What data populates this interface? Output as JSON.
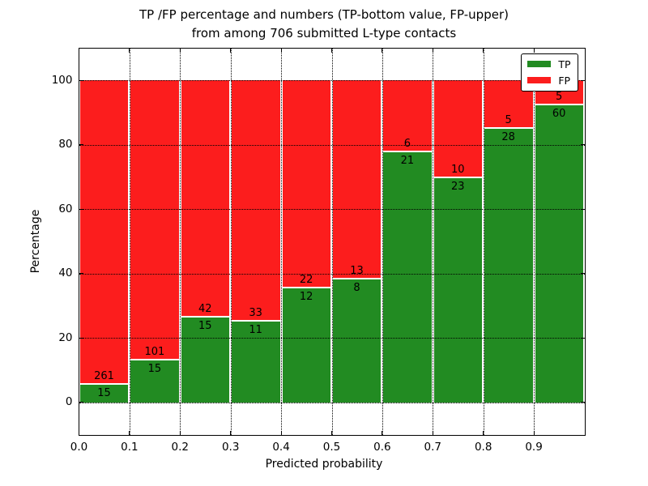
{
  "figure": {
    "title_line1": "TP /FP percentage and numbers (TP-bottom value, FP-upper)",
    "title_line2": "from among 706 submitted L-type contacts"
  },
  "chart_data": {
    "type": "bar",
    "stacked": true,
    "title": "TP /FP percentage and numbers (TP-bottom value, FP-upper)\nfrom among 706 submitted L-type contacts",
    "xlabel": "Predicted probability",
    "ylabel": "Percentage",
    "xlim": [
      0.0,
      1.0
    ],
    "ylim": [
      -10,
      110
    ],
    "grid": true,
    "normalized_to_percent": true,
    "total_contacts": 706,
    "bin_edges": [
      0.0,
      0.1,
      0.2,
      0.3,
      0.4,
      0.5,
      0.6,
      0.7,
      0.8,
      0.9,
      1.0
    ],
    "x_ticks": [
      "0.0",
      "0.1",
      "0.2",
      "0.3",
      "0.4",
      "0.5",
      "0.6",
      "0.7",
      "0.8",
      "0.9"
    ],
    "y_ticks": [
      0,
      20,
      40,
      60,
      80,
      100
    ],
    "series": [
      {
        "name": "TP",
        "color": "#228b22",
        "counts": [
          15,
          15,
          15,
          11,
          12,
          8,
          21,
          23,
          28,
          60
        ]
      },
      {
        "name": "FP",
        "color": "#fc1d1d",
        "counts": [
          261,
          101,
          42,
          33,
          22,
          13,
          6,
          10,
          5,
          5
        ]
      }
    ],
    "tp_percent": [
      5.4,
      12.9,
      26.3,
      25.0,
      35.3,
      38.1,
      77.8,
      69.7,
      84.8,
      92.3
    ],
    "legend": {
      "position": "upper right",
      "entries": [
        {
          "label": "TP",
          "color": "#228b22"
        },
        {
          "label": "FP",
          "color": "#fc1d1d"
        }
      ]
    }
  }
}
